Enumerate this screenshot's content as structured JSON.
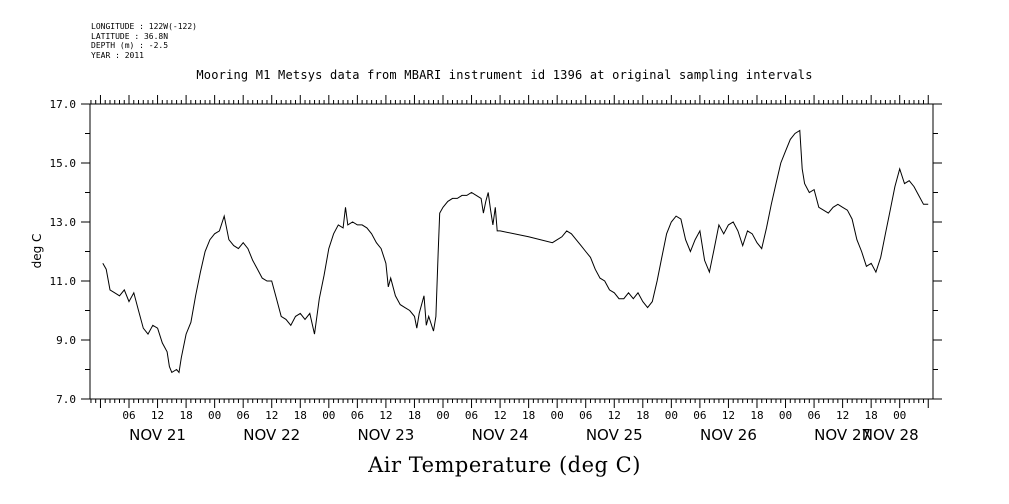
{
  "header": {
    "meta_lines": [
      "LONGITUDE : 122W(-122)",
      "LATITUDE : 36.8N",
      "DEPTH (m) : -2.5",
      "YEAR : 2011"
    ],
    "title": "Mooring M1 Metsys data from MBARI instrument id 1396 at original sampling intervals"
  },
  "caption": "Air Temperature (deg C)",
  "chart_data": {
    "type": "line",
    "title": "Mooring M1 Metsys data from MBARI instrument id 1396 at original sampling intervals",
    "xlabel": "",
    "ylabel": "deg C",
    "ylim": [
      7.0,
      17.0
    ],
    "xlim_hours": [
      0,
      168
    ],
    "y_ticks": [
      "7.0",
      "9.0",
      "11.0",
      "13.0",
      "15.0",
      "17.0"
    ],
    "x_hour_ticks": [
      {
        "h": 6,
        "label": "06"
      },
      {
        "h": 12,
        "label": "12"
      },
      {
        "h": 18,
        "label": "18"
      },
      {
        "h": 24,
        "label": "00"
      },
      {
        "h": 30,
        "label": "06"
      },
      {
        "h": 36,
        "label": "12"
      },
      {
        "h": 42,
        "label": "18"
      },
      {
        "h": 48,
        "label": "00"
      },
      {
        "h": 54,
        "label": "06"
      },
      {
        "h": 60,
        "label": "12"
      },
      {
        "h": 66,
        "label": "18"
      },
      {
        "h": 72,
        "label": "00"
      },
      {
        "h": 78,
        "label": "06"
      },
      {
        "h": 84,
        "label": "12"
      },
      {
        "h": 90,
        "label": "18"
      },
      {
        "h": 96,
        "label": "00"
      },
      {
        "h": 102,
        "label": "06"
      },
      {
        "h": 108,
        "label": "12"
      },
      {
        "h": 114,
        "label": "18"
      },
      {
        "h": 120,
        "label": "00"
      },
      {
        "h": 126,
        "label": "06"
      },
      {
        "h": 132,
        "label": "12"
      },
      {
        "h": 138,
        "label": "18"
      },
      {
        "h": 144,
        "label": "00"
      },
      {
        "h": 150,
        "label": "06"
      },
      {
        "h": 156,
        "label": "12"
      },
      {
        "h": 162,
        "label": "18"
      },
      {
        "h": 168,
        "label": "00"
      }
    ],
    "date_labels": [
      {
        "h": 12,
        "label": "NOV 21"
      },
      {
        "h": 36,
        "label": "NOV 22"
      },
      {
        "h": 60,
        "label": "NOV 23"
      },
      {
        "h": 84,
        "label": "NOV 24"
      },
      {
        "h": 108,
        "label": "NOV 25"
      },
      {
        "h": 132,
        "label": "NOV 26"
      },
      {
        "h": 156,
        "label": "NOV 27"
      },
      {
        "h": 166,
        "label": "NOV 28"
      }
    ],
    "series": [
      {
        "points": [
          [
            0.5,
            11.6
          ],
          [
            1.2,
            11.4
          ],
          [
            2.0,
            10.7
          ],
          [
            3.0,
            10.6
          ],
          [
            4.0,
            10.5
          ],
          [
            5.0,
            10.7
          ],
          [
            6.0,
            10.3
          ],
          [
            7.0,
            10.6
          ],
          [
            8.0,
            10.0
          ],
          [
            9.0,
            9.4
          ],
          [
            10.0,
            9.2
          ],
          [
            11.0,
            9.5
          ],
          [
            12.0,
            9.4
          ],
          [
            13.0,
            8.9
          ],
          [
            14.0,
            8.6
          ],
          [
            14.5,
            8.1
          ],
          [
            15.0,
            7.9
          ],
          [
            16.0,
            8.0
          ],
          [
            16.5,
            7.9
          ],
          [
            17.0,
            8.4
          ],
          [
            18.0,
            9.2
          ],
          [
            19.0,
            9.6
          ],
          [
            20.0,
            10.5
          ],
          [
            21.0,
            11.3
          ],
          [
            22.0,
            12.0
          ],
          [
            23.0,
            12.4
          ],
          [
            24.0,
            12.6
          ],
          [
            25.0,
            12.7
          ],
          [
            26.0,
            13.2
          ],
          [
            27.0,
            12.4
          ],
          [
            28.0,
            12.2
          ],
          [
            29.0,
            12.1
          ],
          [
            30.0,
            12.3
          ],
          [
            31.0,
            12.1
          ],
          [
            32.0,
            11.7
          ],
          [
            33.0,
            11.4
          ],
          [
            34.0,
            11.1
          ],
          [
            35.0,
            11.0
          ],
          [
            36.0,
            11.0
          ],
          [
            37.0,
            10.4
          ],
          [
            38.0,
            9.8
          ],
          [
            39.0,
            9.7
          ],
          [
            40.0,
            9.5
          ],
          [
            41.0,
            9.8
          ],
          [
            42.0,
            9.9
          ],
          [
            43.0,
            9.7
          ],
          [
            44.0,
            9.9
          ],
          [
            45.0,
            9.2
          ],
          [
            46.0,
            10.4
          ],
          [
            47.0,
            11.2
          ],
          [
            48.0,
            12.1
          ],
          [
            49.0,
            12.6
          ],
          [
            50.0,
            12.9
          ],
          [
            51.0,
            12.8
          ],
          [
            51.5,
            13.5
          ],
          [
            52.0,
            12.9
          ],
          [
            53.0,
            13.0
          ],
          [
            54.0,
            12.9
          ],
          [
            55.0,
            12.9
          ],
          [
            56.0,
            12.8
          ],
          [
            57.0,
            12.6
          ],
          [
            58.0,
            12.3
          ],
          [
            59.0,
            12.1
          ],
          [
            60.0,
            11.6
          ],
          [
            60.5,
            10.8
          ],
          [
            61.0,
            11.1
          ],
          [
            62.0,
            10.5
          ],
          [
            63.0,
            10.2
          ],
          [
            64.0,
            10.1
          ],
          [
            65.0,
            10.0
          ],
          [
            66.0,
            9.8
          ],
          [
            66.5,
            9.4
          ],
          [
            67.0,
            9.9
          ],
          [
            68.0,
            10.5
          ],
          [
            68.5,
            9.5
          ],
          [
            69.0,
            9.8
          ],
          [
            70.0,
            9.3
          ],
          [
            70.5,
            9.8
          ],
          [
            71.0,
            12.0
          ],
          [
            71.3,
            13.3
          ],
          [
            72.0,
            13.5
          ],
          [
            73.0,
            13.7
          ],
          [
            74.0,
            13.8
          ],
          [
            75.0,
            13.8
          ],
          [
            76.0,
            13.9
          ],
          [
            77.0,
            13.9
          ],
          [
            78.0,
            14.0
          ],
          [
            79.0,
            13.9
          ],
          [
            80.0,
            13.8
          ],
          [
            80.5,
            13.3
          ],
          [
            81.0,
            13.7
          ],
          [
            81.5,
            14.0
          ],
          [
            82.0,
            13.4
          ],
          [
            82.5,
            12.9
          ],
          [
            83.0,
            13.5
          ],
          [
            83.4,
            12.7
          ],
          [
            84.0,
            12.7
          ],
          [
            90.0,
            12.5
          ],
          [
            95.0,
            12.3
          ],
          [
            96.0,
            12.4
          ],
          [
            97.0,
            12.5
          ],
          [
            98.0,
            12.7
          ],
          [
            99.0,
            12.6
          ],
          [
            100.0,
            12.4
          ],
          [
            101.0,
            12.2
          ],
          [
            102.0,
            12.0
          ],
          [
            103.0,
            11.8
          ],
          [
            104.0,
            11.4
          ],
          [
            105.0,
            11.1
          ],
          [
            106.0,
            11.0
          ],
          [
            107.0,
            10.7
          ],
          [
            108.0,
            10.6
          ],
          [
            109.0,
            10.4
          ],
          [
            110.0,
            10.4
          ],
          [
            111.0,
            10.6
          ],
          [
            112.0,
            10.4
          ],
          [
            113.0,
            10.6
          ],
          [
            114.0,
            10.3
          ],
          [
            115.0,
            10.1
          ],
          [
            116.0,
            10.3
          ],
          [
            117.0,
            11.0
          ],
          [
            118.0,
            11.8
          ],
          [
            119.0,
            12.6
          ],
          [
            120.0,
            13.0
          ],
          [
            121.0,
            13.2
          ],
          [
            122.0,
            13.1
          ],
          [
            123.0,
            12.4
          ],
          [
            124.0,
            12.0
          ],
          [
            125.0,
            12.4
          ],
          [
            126.0,
            12.7
          ],
          [
            127.0,
            11.7
          ],
          [
            128.0,
            11.3
          ],
          [
            129.0,
            12.1
          ],
          [
            130.0,
            12.9
          ],
          [
            131.0,
            12.6
          ],
          [
            132.0,
            12.9
          ],
          [
            133.0,
            13.0
          ],
          [
            134.0,
            12.7
          ],
          [
            135.0,
            12.2
          ],
          [
            136.0,
            12.7
          ],
          [
            137.0,
            12.6
          ],
          [
            138.0,
            12.3
          ],
          [
            139.0,
            12.1
          ],
          [
            140.0,
            12.8
          ],
          [
            141.0,
            13.6
          ],
          [
            142.0,
            14.3
          ],
          [
            143.0,
            15.0
          ],
          [
            144.0,
            15.4
          ],
          [
            145.0,
            15.8
          ],
          [
            146.0,
            16.0
          ],
          [
            147.0,
            16.1
          ],
          [
            147.5,
            14.8
          ],
          [
            148.0,
            14.3
          ],
          [
            149.0,
            14.0
          ],
          [
            150.0,
            14.1
          ],
          [
            151.0,
            13.5
          ],
          [
            152.0,
            13.4
          ],
          [
            153.0,
            13.3
          ],
          [
            154.0,
            13.5
          ],
          [
            155.0,
            13.6
          ],
          [
            156.0,
            13.5
          ],
          [
            157.0,
            13.4
          ],
          [
            158.0,
            13.1
          ],
          [
            159.0,
            12.4
          ],
          [
            160.0,
            12.0
          ],
          [
            161.0,
            11.5
          ],
          [
            162.0,
            11.6
          ],
          [
            163.0,
            11.3
          ],
          [
            164.0,
            11.8
          ],
          [
            165.0,
            12.6
          ],
          [
            166.0,
            13.4
          ],
          [
            167.0,
            14.2
          ],
          [
            168.0,
            14.8
          ],
          [
            169.0,
            14.3
          ],
          [
            170.0,
            14.4
          ],
          [
            171.0,
            14.2
          ],
          [
            172.0,
            13.9
          ],
          [
            173.0,
            13.6
          ],
          [
            174.0,
            13.6
          ]
        ]
      }
    ]
  }
}
